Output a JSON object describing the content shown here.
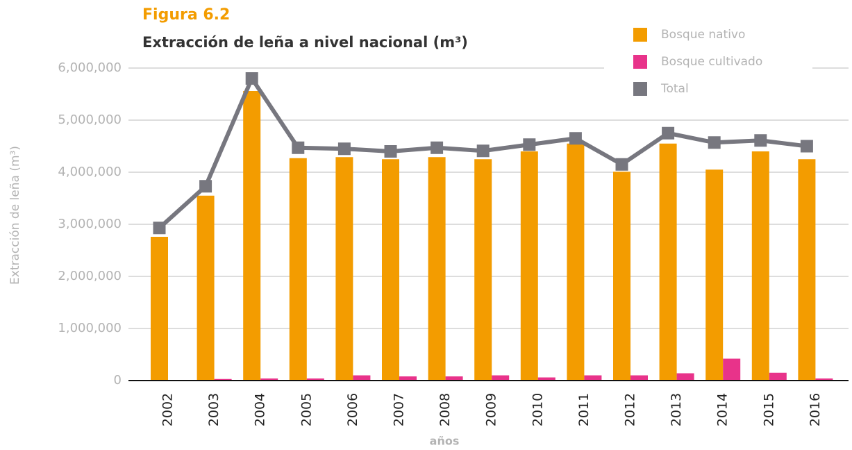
{
  "chart_data": {
    "type": "bar",
    "title": "Figura 6.2",
    "subtitle": "Extracción de leña a nivel nacional (m³)",
    "y_label": "Extracción de leña (m³)",
    "x_label": "años",
    "categories": [
      "2002",
      "2003",
      "2004",
      "2005",
      "2006",
      "2007",
      "2008",
      "2009",
      "2010",
      "2011",
      "2012",
      "2013",
      "2014",
      "2015",
      "2016"
    ],
    "series": [
      {
        "name": "Bosque nativo",
        "color": "#f39c00",
        "type": "bar",
        "values": [
          2760000,
          3550000,
          5560000,
          4270000,
          4290000,
          4250000,
          4290000,
          4250000,
          4400000,
          4550000,
          4010000,
          4550000,
          4050000,
          4400000,
          4250000
        ]
      },
      {
        "name": "Bosque cultivado",
        "color": "#e8338a",
        "type": "bar",
        "values": [
          0,
          30000,
          40000,
          40000,
          100000,
          80000,
          80000,
          100000,
          60000,
          100000,
          100000,
          140000,
          420000,
          150000,
          40000
        ]
      },
      {
        "name": "Total",
        "color": "#77777f",
        "type": "line",
        "values": [
          2930000,
          3730000,
          5800000,
          4470000,
          4450000,
          4400000,
          4470000,
          4410000,
          4530000,
          4650000,
          4150000,
          4750000,
          4570000,
          4610000,
          4500000
        ]
      }
    ],
    "ylim": [
      0,
      6000000
    ],
    "yticks": [
      0,
      {
        "value": 1000000,
        "label": "1,000,000"
      },
      {
        "value": 2000000,
        "label": "2,000,000"
      },
      {
        "value": 3000000,
        "label": "3,000,000"
      },
      {
        "value": 4000000,
        "label": "4,000,000"
      },
      {
        "value": 5000000,
        "label": "5,000,000"
      },
      {
        "value": 6000000,
        "label": "6,000,000"
      }
    ],
    "grid": true,
    "legend": "top-right"
  }
}
